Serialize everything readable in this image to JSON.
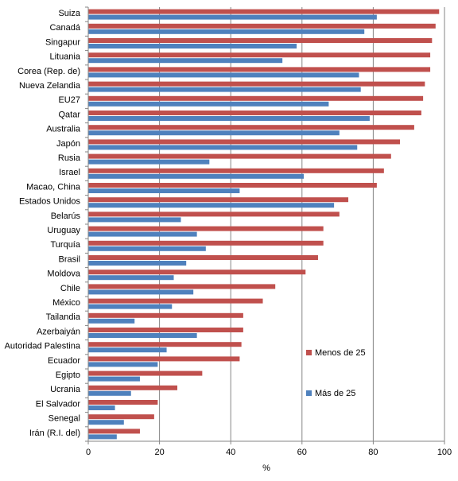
{
  "chart_data": {
    "type": "bar",
    "orientation": "horizontal",
    "categories": [
      "Suiza",
      "Canadá",
      "Singapur",
      "Lituania",
      "Corea (Rep. de)",
      "Nueva Zelandia",
      "EU27",
      "Qatar",
      "Australia",
      "Japón",
      "Rusia",
      "Israel",
      "Macao, China",
      "Estados Unidos",
      "Belarús",
      "Uruguay",
      "Turquía",
      "Brasil",
      "Moldova",
      "Chile",
      "México",
      "Tailandia",
      "Azerbaiyán",
      "Autoridad Palestina",
      "Ecuador",
      "Egipto",
      "Ucrania",
      "El Salvador",
      "Senegal",
      "Irán (R.I. del)"
    ],
    "series": [
      {
        "name": "Menos de 25",
        "color": "#C0504D",
        "values": [
          98.5,
          97.5,
          96.5,
          96.0,
          96.0,
          94.5,
          94.0,
          93.5,
          91.5,
          87.5,
          85.0,
          83.0,
          81.0,
          73.0,
          70.5,
          66.0,
          66.0,
          64.5,
          61.0,
          52.5,
          49.0,
          43.5,
          43.5,
          43.0,
          42.5,
          32.0,
          25.0,
          19.5,
          18.5,
          14.5
        ]
      },
      {
        "name": "Más de 25",
        "color": "#4F81BD",
        "values": [
          81.0,
          77.5,
          58.5,
          54.5,
          76.0,
          76.5,
          67.5,
          79.0,
          70.5,
          75.5,
          34.0,
          60.5,
          42.5,
          69.0,
          26.0,
          30.5,
          33.0,
          27.5,
          24.0,
          29.5,
          23.5,
          13.0,
          30.5,
          22.0,
          19.5,
          14.5,
          12.0,
          7.5,
          10.0,
          8.0
        ]
      }
    ],
    "xlabel": "%",
    "xlim": [
      0,
      100
    ],
    "xticks": [
      0,
      20,
      40,
      60,
      80,
      100
    ],
    "grid": "vertical",
    "legend": "right-middle inside plot"
  }
}
